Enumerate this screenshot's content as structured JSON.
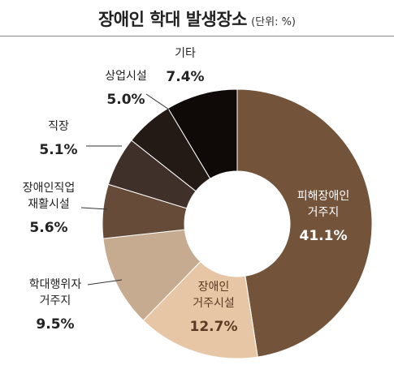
{
  "chart_data": {
    "type": "pie",
    "style": "donut",
    "title": "장애인 학대 발생장소",
    "unit_note": "(단위: %)",
    "slices": [
      {
        "label": "피해장애인 거주지",
        "label_lines": [
          "피해장애인",
          "거주지"
        ],
        "value": 41.1,
        "value_text": "41.1%",
        "color": "#73543a",
        "text_color": "#ffffff"
      },
      {
        "label": "장애인 거주시설",
        "label_lines": [
          "장애인",
          "거주시설"
        ],
        "value": 12.7,
        "value_text": "12.7%",
        "color": "#e7c6a6",
        "text_color": "#5a3a22"
      },
      {
        "label": "학대행위자 거주지",
        "label_lines": [
          "학대행위자",
          "거주지"
        ],
        "value": 9.5,
        "value_text": "9.5%",
        "color": "#c6ab91",
        "text_color": "#222222"
      },
      {
        "label": "장애인직업 재활시설",
        "label_lines": [
          "장애인직업",
          "재활시설"
        ],
        "value": 5.6,
        "value_text": "5.6%",
        "color": "#664c38",
        "text_color": "#222222"
      },
      {
        "label": "직장",
        "label_lines": [
          "직장"
        ],
        "value": 5.1,
        "value_text": "5.1%",
        "color": "#3f302a",
        "text_color": "#222222"
      },
      {
        "label": "상업시설",
        "label_lines": [
          "상업시설"
        ],
        "value": 5.0,
        "value_text": "5.0%",
        "color": "#231a16",
        "text_color": "#222222"
      },
      {
        "label": "기타",
        "label_lines": [
          "기타"
        ],
        "value": 7.4,
        "value_text": "7.4%",
        "color": "#0f0907",
        "text_color": "#222222"
      }
    ]
  }
}
